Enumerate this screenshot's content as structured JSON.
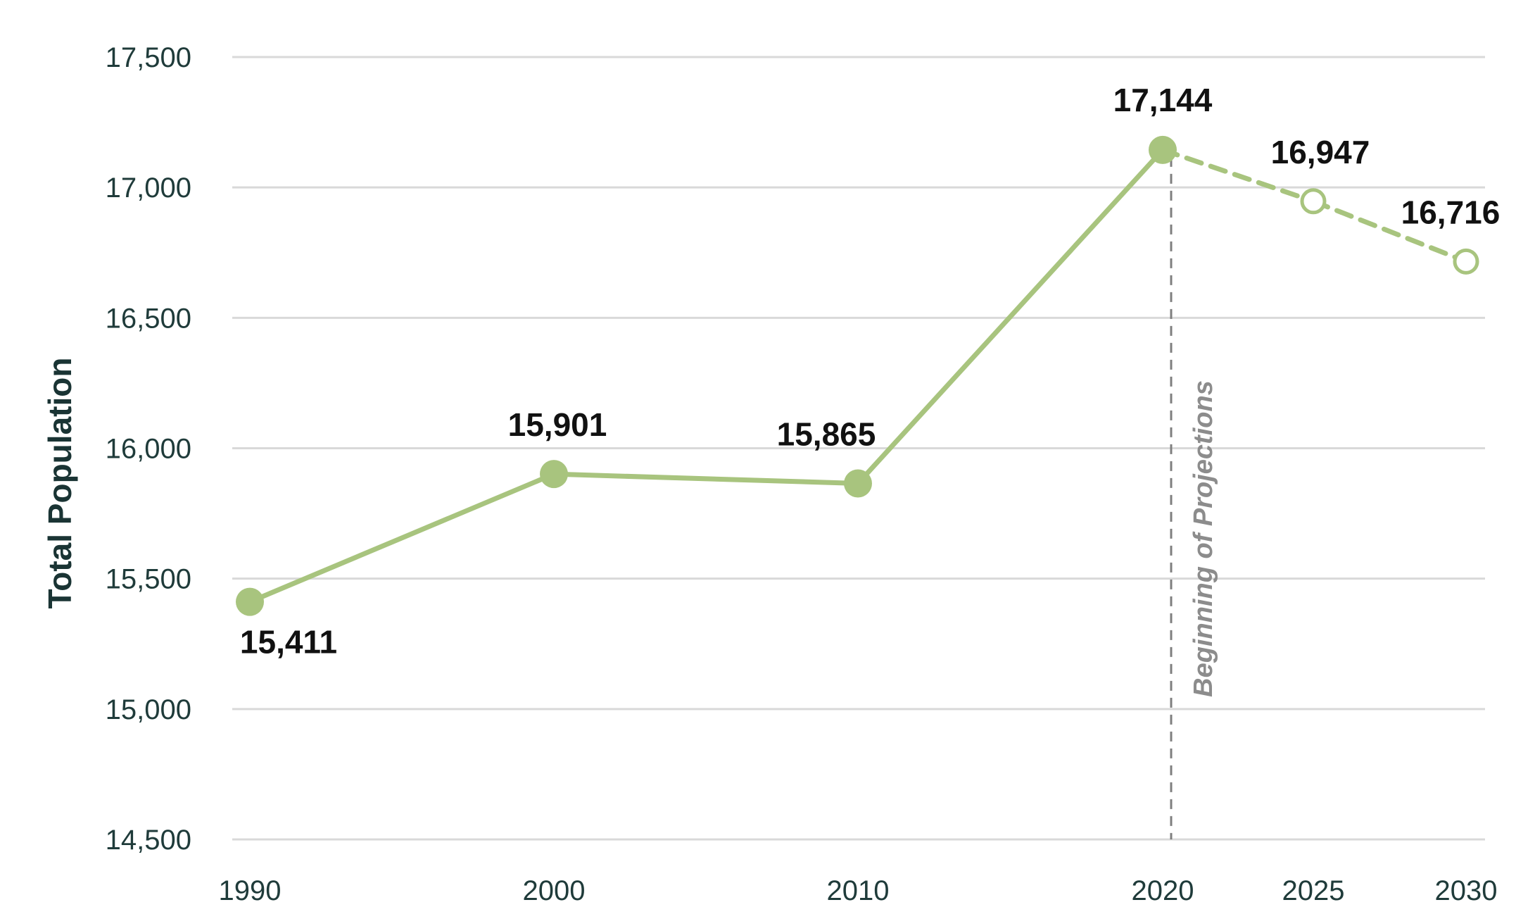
{
  "chart_data": {
    "type": "line",
    "title": "",
    "xlabel": "",
    "ylabel": "Total Population",
    "ylim": [
      14500,
      17500
    ],
    "yticks": [
      14500,
      15000,
      15500,
      16000,
      16500,
      17000,
      17500
    ],
    "ytick_labels": [
      "14,500",
      "15,000",
      "15,500",
      "16,000",
      "16,500",
      "17,000",
      "17,500"
    ],
    "x": [
      1990,
      2000,
      2010,
      2020,
      2025,
      2030
    ],
    "xtick_labels": [
      "1990",
      "2000",
      "2010",
      "2020",
      "2025",
      "2030"
    ],
    "grid": true,
    "series": [
      {
        "values": [
          15411,
          15901,
          15865,
          17144,
          16947,
          16716
        ],
        "value_labels": [
          "15,411",
          "15,901",
          "15,865",
          "17,144",
          "16,947",
          "16,716"
        ],
        "projected": [
          false,
          false,
          false,
          false,
          true,
          true
        ],
        "color": "#a8c47e"
      }
    ],
    "annotations": [
      {
        "text": "Beginning of Projections",
        "x": 2020,
        "style": "dashed-vertical-line",
        "color": "#7f7f7f"
      }
    ]
  }
}
